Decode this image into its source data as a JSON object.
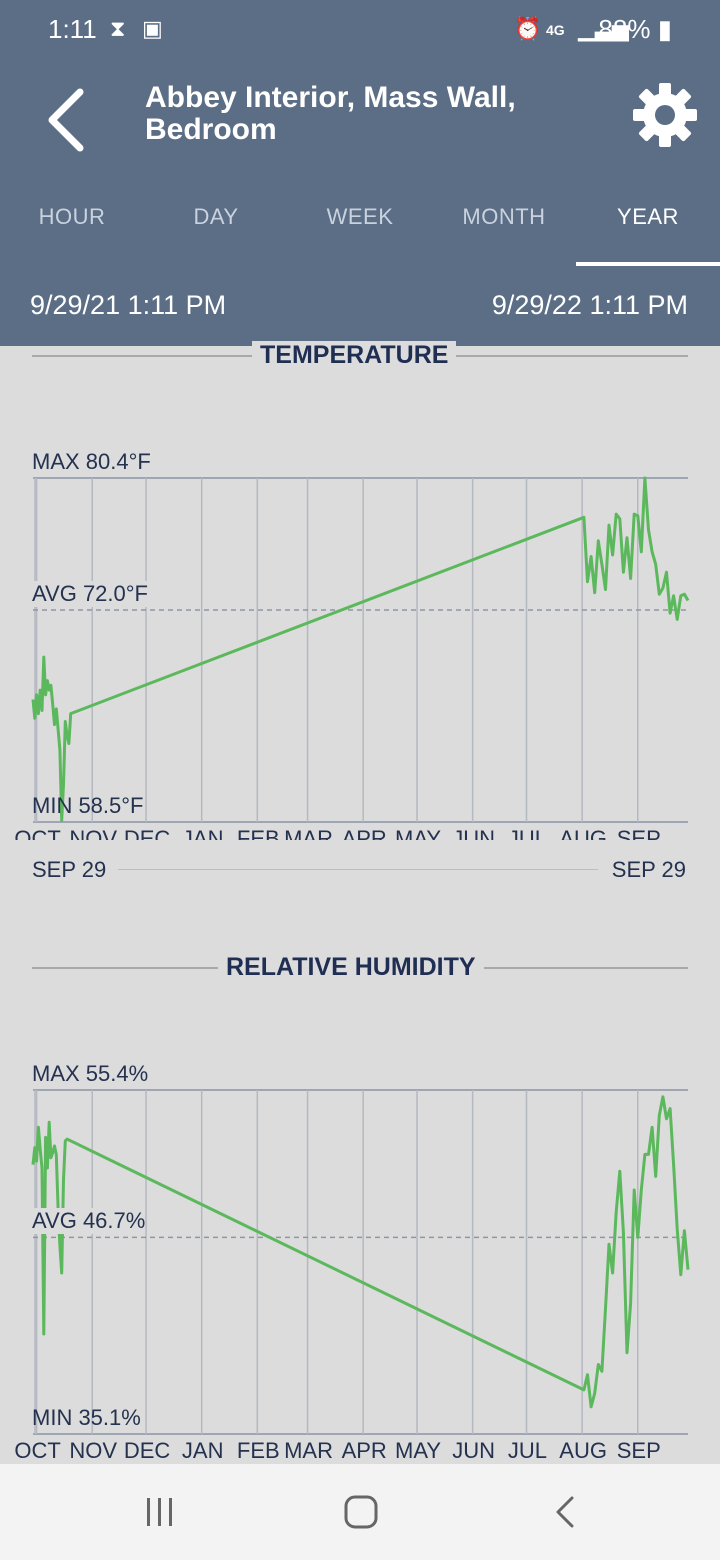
{
  "status_bar": {
    "time": "1:11",
    "battery": "88%",
    "icons": [
      "hourglass-icon",
      "image-icon",
      "alarm-icon",
      "4g-lte-icon",
      "signal-icon",
      "battery-icon"
    ]
  },
  "app_bar": {
    "title": "Abbey Interior, Mass Wall, Bedroom"
  },
  "tabs": [
    "HOUR",
    "DAY",
    "WEEK",
    "MONTH",
    "YEAR"
  ],
  "active_tab": "YEAR",
  "range": {
    "start": "9/29/21 1:11 PM",
    "end": "9/29/22 1:11 PM"
  },
  "colors": {
    "header": "#5b6e86",
    "line": "#5cb85c",
    "background": "#dcdcdc",
    "title": "#1f2e52"
  },
  "months": [
    "OCT",
    "NOV",
    "DEC",
    "JAN",
    "FEB",
    "MAR",
    "APR",
    "MAY",
    "JUN",
    "JUL",
    "AUG",
    "SEP"
  ],
  "date_start": "SEP 29",
  "date_end": "SEP 29",
  "temperature": {
    "title": "TEMPERATURE",
    "max_label": "MAX 80.4°F",
    "avg_label": "AVG 72.0°F",
    "min_label": "MIN 58.5°F",
    "unit": "°F",
    "max": 80.4,
    "avg": 72.0,
    "min": 58.5
  },
  "humidity": {
    "title": "RELATIVE HUMIDITY",
    "max_label": "MAX 55.4%",
    "avg_label": "AVG 46.7%",
    "min_label": "MIN 35.1%",
    "unit": "%",
    "max": 55.4,
    "avg": 46.7,
    "min": 35.1
  },
  "chart_data": [
    {
      "type": "line",
      "title": "TEMPERATURE",
      "x_axis": [
        "OCT",
        "NOV",
        "DEC",
        "JAN",
        "FEB",
        "MAR",
        "APR",
        "MAY",
        "JUN",
        "JUL",
        "AUG",
        "SEP"
      ],
      "x_range": [
        "2021-09-29",
        "2022-09-29"
      ],
      "ylim": [
        58.5,
        80.4
      ],
      "avg": 72.0,
      "series": [
        {
          "x": [
            "2021-09-29",
            "2021-09-30",
            "2021-10-01",
            "2021-10-02",
            "2021-10-03",
            "2021-10-04",
            "2021-10-05",
            "2021-10-06",
            "2021-10-07",
            "2021-10-08",
            "2021-10-09",
            "2021-10-10",
            "2021-10-11",
            "2021-10-12",
            "2021-10-13",
            "2021-10-14",
            "2021-10-15",
            "2021-10-16",
            "2021-10-17",
            "2021-10-18",
            "2021-10-19",
            "2021-10-20",
            "2022-08-02",
            "2022-08-04",
            "2022-08-06",
            "2022-08-08",
            "2022-08-10",
            "2022-08-12",
            "2022-08-14",
            "2022-08-16",
            "2022-08-18",
            "2022-08-20",
            "2022-08-22",
            "2022-08-24",
            "2022-08-26",
            "2022-08-28",
            "2022-08-30",
            "2022-09-01",
            "2022-09-03",
            "2022-09-05",
            "2022-09-07",
            "2022-09-09",
            "2022-09-11",
            "2022-09-13",
            "2022-09-15",
            "2022-09-17",
            "2022-09-19",
            "2022-09-21",
            "2022-09-23",
            "2022-09-25",
            "2022-09-27",
            "2022-09-29"
          ],
          "y": [
            66.3,
            65.1,
            66.6,
            65.4,
            66.9,
            65.6,
            69.0,
            66.6,
            67.5,
            66.9,
            67.2,
            66.0,
            64.7,
            65.7,
            64.4,
            63.1,
            58.6,
            60.9,
            64.9,
            64.0,
            63.5,
            65.4,
            77.9,
            73.8,
            75.4,
            73.1,
            76.4,
            74.9,
            73.3,
            77.4,
            75.5,
            78.1,
            77.8,
            74.4,
            76.6,
            74.0,
            78.1,
            78.0,
            75.7,
            80.4,
            77.1,
            75.7,
            74.9,
            73.0,
            73.4,
            74.4,
            71.8,
            72.9,
            71.4,
            72.9,
            73.0,
            72.6
          ]
        }
      ]
    },
    {
      "type": "line",
      "title": "RELATIVE HUMIDITY",
      "x_axis": [
        "OCT",
        "NOV",
        "DEC",
        "JAN",
        "FEB",
        "MAR",
        "APR",
        "MAY",
        "JUN",
        "JUL",
        "AUG",
        "SEP"
      ],
      "x_range": [
        "2021-09-29",
        "2022-09-29"
      ],
      "ylim": [
        35.1,
        55.4
      ],
      "avg": 46.7,
      "series": [
        {
          "x": [
            "2021-09-29",
            "2021-09-30",
            "2021-10-01",
            "2021-10-02",
            "2021-10-03",
            "2021-10-04",
            "2021-10-05",
            "2021-10-06",
            "2021-10-07",
            "2021-10-08",
            "2021-10-09",
            "2021-10-10",
            "2021-10-11",
            "2021-10-12",
            "2021-10-13",
            "2021-10-14",
            "2021-10-15",
            "2021-10-16",
            "2021-10-17",
            "2021-10-18",
            "2022-08-02",
            "2022-08-04",
            "2022-08-06",
            "2022-08-08",
            "2022-08-10",
            "2022-08-12",
            "2022-08-14",
            "2022-08-16",
            "2022-08-18",
            "2022-08-20",
            "2022-08-22",
            "2022-08-24",
            "2022-08-26",
            "2022-08-28",
            "2022-08-30",
            "2022-09-01",
            "2022-09-03",
            "2022-09-05",
            "2022-09-07",
            "2022-09-09",
            "2022-09-11",
            "2022-09-13",
            "2022-09-15",
            "2022-09-17",
            "2022-09-19",
            "2022-09-21",
            "2022-09-23",
            "2022-09-25",
            "2022-09-27",
            "2022-09-29"
          ],
          "y": [
            51.0,
            52.0,
            51.2,
            53.2,
            51.9,
            50.8,
            41.0,
            52.6,
            50.8,
            53.5,
            51.4,
            51.7,
            52.1,
            51.6,
            48.4,
            46.2,
            44.6,
            50.1,
            52.4,
            52.5,
            37.7,
            38.6,
            36.7,
            37.5,
            39.2,
            38.8,
            42.5,
            46.3,
            44.6,
            48.2,
            50.6,
            47.0,
            39.9,
            42.8,
            49.5,
            46.7,
            49.5,
            51.6,
            51.6,
            53.2,
            50.3,
            53.9,
            55.0,
            53.7,
            54.3,
            51.0,
            47.2,
            44.5,
            47.1,
            44.8
          ]
        }
      ]
    }
  ]
}
